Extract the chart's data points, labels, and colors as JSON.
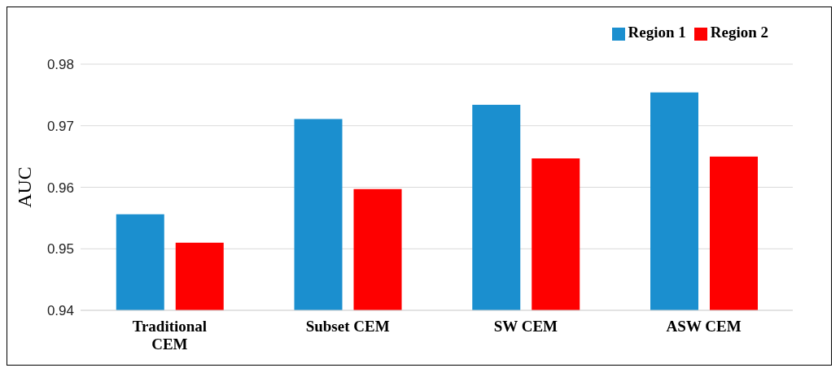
{
  "chart_data": {
    "type": "bar",
    "ylabel": "AUC",
    "categories": [
      "Traditional CEM",
      "Subset CEM",
      "SW CEM",
      "ASW CEM"
    ],
    "series": [
      {
        "name": "Region 1",
        "color": "#1b8fcf",
        "values": [
          0.9556,
          0.9711,
          0.9734,
          0.9754
        ]
      },
      {
        "name": "Region 2",
        "color": "#fe0000",
        "values": [
          0.951,
          0.9597,
          0.9647,
          0.965
        ]
      }
    ],
    "ylim": [
      0.94,
      0.98
    ],
    "yticks": [
      0.94,
      0.95,
      0.96,
      0.97,
      0.98
    ],
    "grid": "y",
    "legend": "top right"
  }
}
